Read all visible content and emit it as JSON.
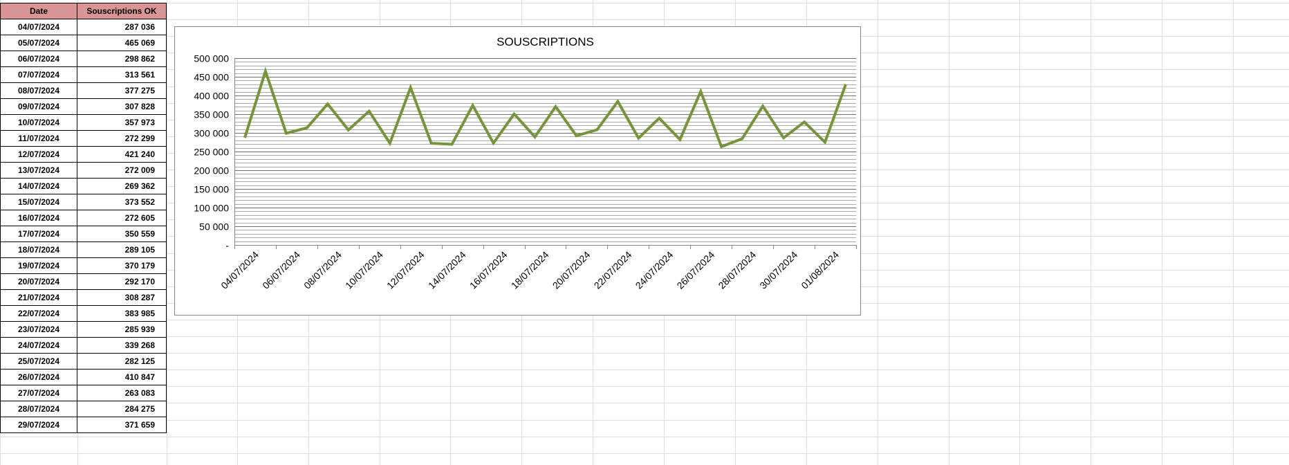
{
  "table": {
    "headers": {
      "date": "Date",
      "value": "Souscriptions OK"
    },
    "rows": [
      {
        "date": "04/07/2024",
        "value": "287 036"
      },
      {
        "date": "05/07/2024",
        "value": "465 069"
      },
      {
        "date": "06/07/2024",
        "value": "298 862"
      },
      {
        "date": "07/07/2024",
        "value": "313 561"
      },
      {
        "date": "08/07/2024",
        "value": "377 275"
      },
      {
        "date": "09/07/2024",
        "value": "307 828"
      },
      {
        "date": "10/07/2024",
        "value": "357 973"
      },
      {
        "date": "11/07/2024",
        "value": "272 299"
      },
      {
        "date": "12/07/2024",
        "value": "421 240"
      },
      {
        "date": "13/07/2024",
        "value": "272 009"
      },
      {
        "date": "14/07/2024",
        "value": "269 362"
      },
      {
        "date": "15/07/2024",
        "value": "373 552"
      },
      {
        "date": "16/07/2024",
        "value": "272 605"
      },
      {
        "date": "17/07/2024",
        "value": "350 559"
      },
      {
        "date": "18/07/2024",
        "value": "289 105"
      },
      {
        "date": "19/07/2024",
        "value": "370 179"
      },
      {
        "date": "20/07/2024",
        "value": "292 170"
      },
      {
        "date": "21/07/2024",
        "value": "308 287"
      },
      {
        "date": "22/07/2024",
        "value": "383 985"
      },
      {
        "date": "23/07/2024",
        "value": "285 939"
      },
      {
        "date": "24/07/2024",
        "value": "339 268"
      },
      {
        "date": "25/07/2024",
        "value": "282 125"
      },
      {
        "date": "26/07/2024",
        "value": "410 847"
      },
      {
        "date": "27/07/2024",
        "value": "263 083"
      },
      {
        "date": "28/07/2024",
        "value": "284 275"
      },
      {
        "date": "29/07/2024",
        "value": "371 659"
      }
    ],
    "header_color": "#d99594"
  },
  "chart_data": {
    "type": "line",
    "title": "SOUSCRIPTIONS",
    "xlabel": "",
    "ylabel": "",
    "ylim": [
      0,
      500000
    ],
    "yticks": [
      0,
      50000,
      100000,
      150000,
      200000,
      250000,
      300000,
      350000,
      400000,
      450000,
      500000
    ],
    "ytick_labels": [
      "-",
      "50 000",
      "100 000",
      "150 000",
      "200 000",
      "250 000",
      "300 000",
      "350 000",
      "400 000",
      "450 000",
      "500 000"
    ],
    "xtick_labels": [
      "04/07/2024",
      "06/07/2024",
      "08/07/2024",
      "10/07/2024",
      "12/07/2024",
      "14/07/2024",
      "16/07/2024",
      "18/07/2024",
      "20/07/2024",
      "22/07/2024",
      "24/07/2024",
      "26/07/2024",
      "28/07/2024",
      "30/07/2024",
      "01/08/2024"
    ],
    "x": [
      "04/07/2024",
      "05/07/2024",
      "06/07/2024",
      "07/07/2024",
      "08/07/2024",
      "09/07/2024",
      "10/07/2024",
      "11/07/2024",
      "12/07/2024",
      "13/07/2024",
      "14/07/2024",
      "15/07/2024",
      "16/07/2024",
      "17/07/2024",
      "18/07/2024",
      "19/07/2024",
      "20/07/2024",
      "21/07/2024",
      "22/07/2024",
      "23/07/2024",
      "24/07/2024",
      "25/07/2024",
      "26/07/2024",
      "27/07/2024",
      "28/07/2024",
      "29/07/2024",
      "30/07/2024",
      "31/07/2024",
      "01/08/2024",
      "02/08/2024"
    ],
    "series": [
      {
        "name": "",
        "color": "#77933c",
        "values": [
          287036,
          465069,
          298862,
          313561,
          377275,
          307828,
          357973,
          272299,
          421240,
          272009,
          269362,
          373552,
          272605,
          350559,
          289105,
          370179,
          292170,
          308287,
          383985,
          285939,
          339268,
          282125,
          410847,
          263083,
          284275,
          371659,
          286712,
          329000,
          275000,
          430000
        ]
      }
    ],
    "grid": true,
    "minor_grid": true,
    "legend": "none"
  }
}
